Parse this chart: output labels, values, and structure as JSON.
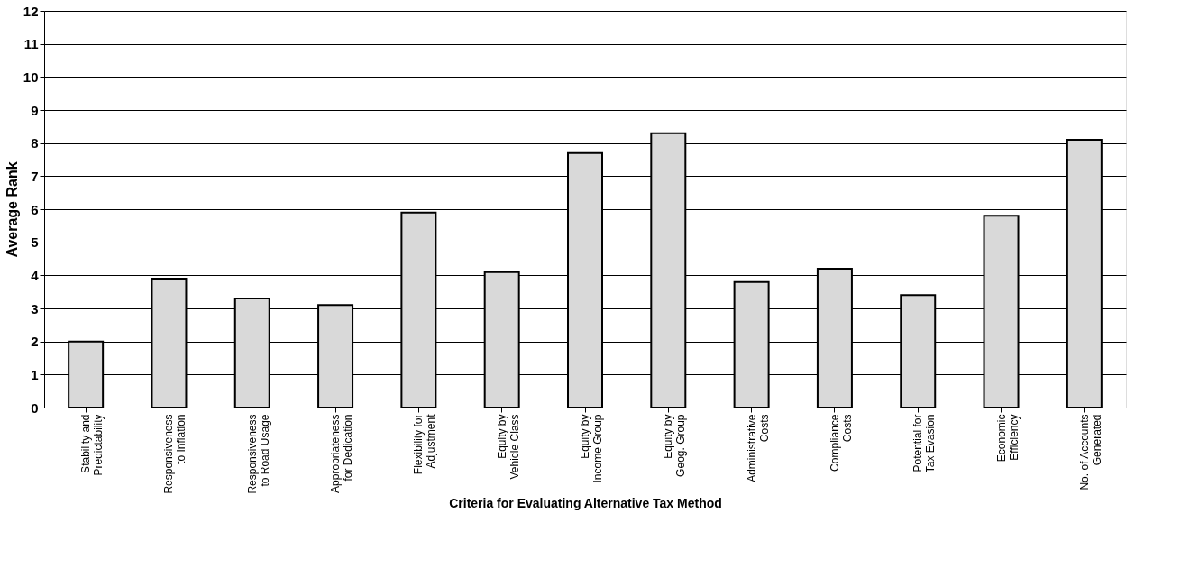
{
  "chart_data": {
    "type": "bar",
    "categories": [
      "Stability and\nPredictability",
      "Responsiveness\nto Inflation",
      "Responsiveness\nto Road Usage",
      "Appropriateness\nfor Dedication",
      "Flexibility for\nAdjustment",
      "Equity by\nVehicle Class",
      "Equity by\nIncome Group",
      "Equity by\nGeog. Group",
      "Administrative\nCosts",
      "Compliance\nCosts",
      "Potential for\nTax Evasion",
      "Economic\nEfficiency",
      "No. of Accounts\nGenerated"
    ],
    "values": [
      2.0,
      3.9,
      3.3,
      3.1,
      5.9,
      4.1,
      7.7,
      8.3,
      3.8,
      4.2,
      3.4,
      5.8,
      8.1
    ],
    "color": "#d9d9d9",
    "xlabel": "Criteria for Evaluating Alternative Tax Method",
    "ylabel": "Average Rank",
    "ylim": [
      0,
      12
    ],
    "yticks": [
      0,
      1,
      2,
      3,
      4,
      5,
      6,
      7,
      8,
      9,
      10,
      11,
      12
    ],
    "grid": "y"
  }
}
